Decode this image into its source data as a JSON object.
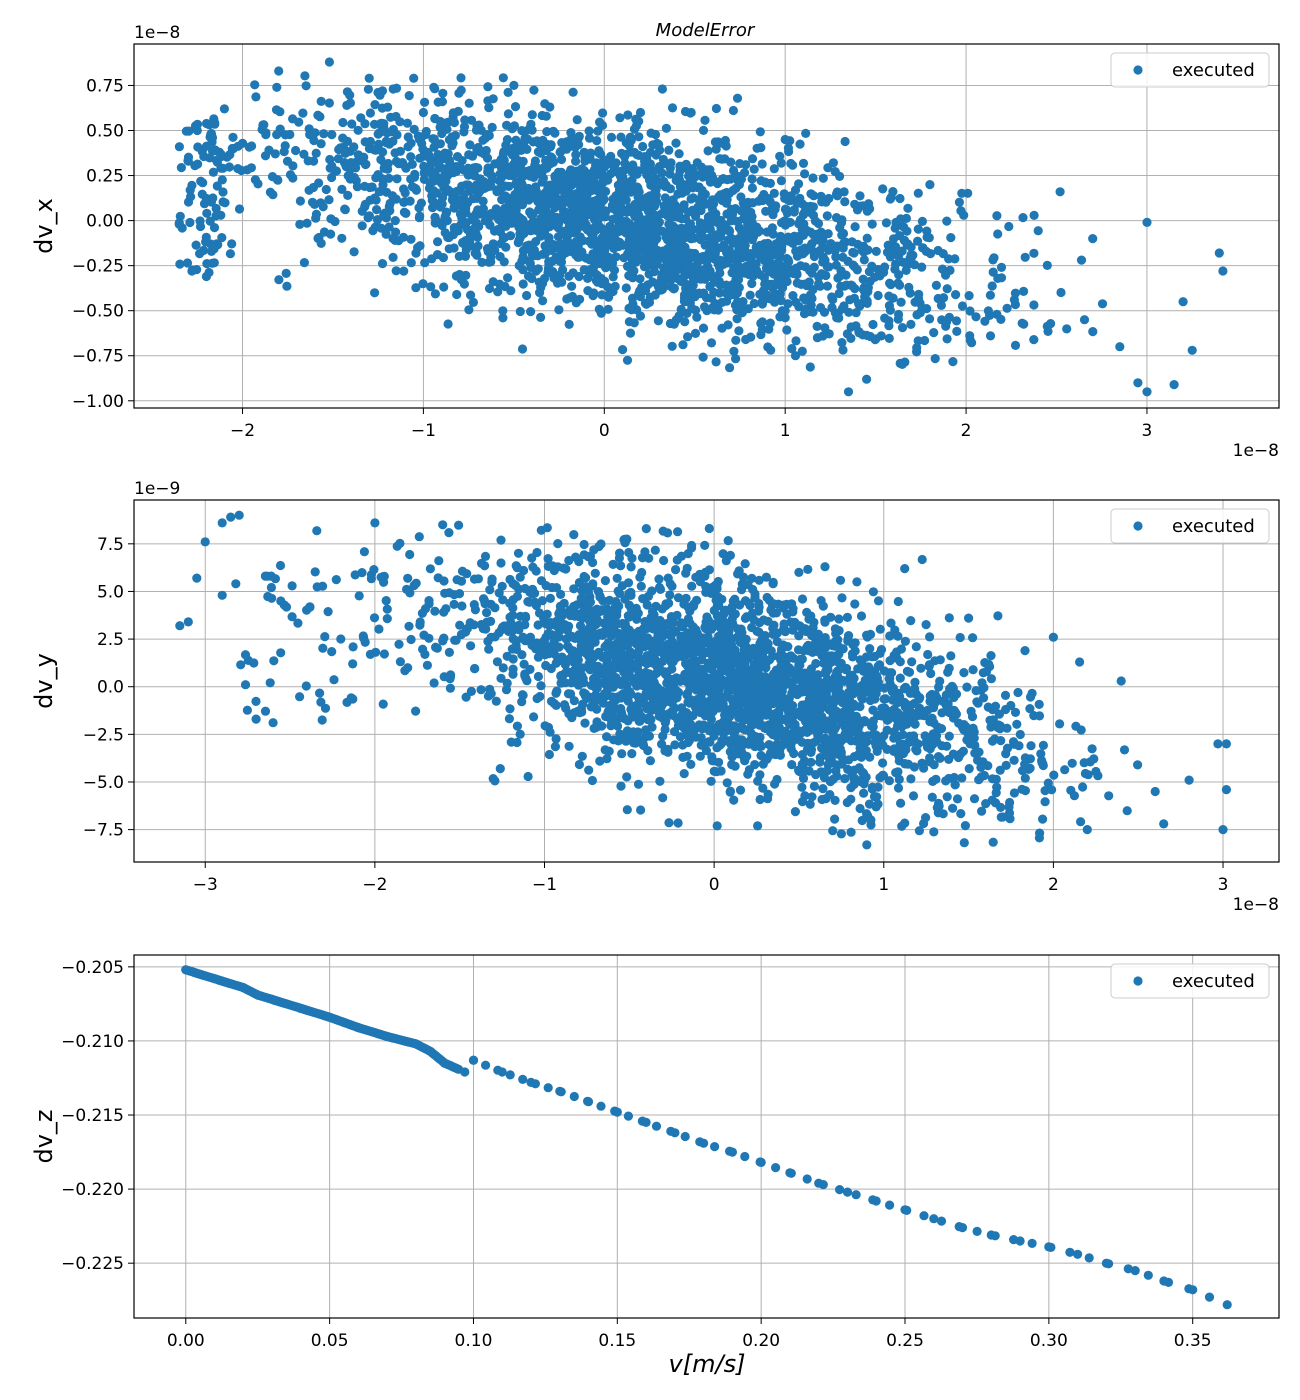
{
  "figure_title": "ModelError",
  "xlabel": "v[m/s]",
  "colors": {
    "marker": "#1f77b4",
    "grid": "#b0b0b0",
    "axes": "#000000",
    "legend_border": "#cccccc"
  },
  "chart_data": [
    {
      "type": "scatter",
      "ylabel": "dv_x",
      "legend": {
        "entries": [
          "executed"
        ],
        "placement": "top-right"
      },
      "grid": true,
      "xlim": [
        -2.6,
        3.73
      ],
      "ylim": [
        -1.04,
        0.98
      ],
      "x_offset_label": "1e−8",
      "y_offset_label": "1e−8",
      "xticks": [
        -2,
        -1,
        0,
        1,
        2,
        3
      ],
      "xtick_labels": [
        "−2",
        "−1",
        "0",
        "1",
        "2",
        "3"
      ],
      "yticks": [
        -1.0,
        -0.75,
        -0.5,
        -0.25,
        0.0,
        0.25,
        0.5,
        0.75
      ],
      "ytick_labels": [
        "−1.00",
        "−0.75",
        "−0.50",
        "−0.25",
        "0.00",
        "0.25",
        "0.50",
        "0.75"
      ],
      "series": [
        {
          "name": "executed",
          "description": "approx. 3000 points forming a negatively sloped cloud (slope about -0.2); values in units of 1e-8",
          "x_range": [
            -2.35,
            3.42
          ],
          "y_range": [
            -0.95,
            0.88
          ],
          "sample_points": [
            [
              -2.35,
              -0.02
            ],
            [
              -2.3,
              0.33
            ],
            [
              -2.28,
              -0.28
            ],
            [
              -2.25,
              0.5
            ],
            [
              -2.2,
              -0.31
            ],
            [
              -2.1,
              0.62
            ],
            [
              -1.8,
              0.83
            ],
            [
              -1.52,
              0.88
            ],
            [
              -1.3,
              0.79
            ],
            [
              -1.0,
              0.6
            ],
            [
              -0.5,
              0.75
            ],
            [
              0.2,
              0.6
            ],
            [
              1.0,
              0.45
            ],
            [
              1.0,
              -0.5
            ],
            [
              1.35,
              -0.95
            ],
            [
              1.45,
              -0.88
            ],
            [
              1.8,
              0.2
            ],
            [
              2.52,
              0.16
            ],
            [
              2.7,
              -0.1
            ],
            [
              2.85,
              -0.7
            ],
            [
              2.95,
              -0.9
            ],
            [
              3.0,
              -0.01
            ],
            [
              3.0,
              -0.95
            ],
            [
              3.15,
              -0.91
            ],
            [
              3.2,
              -0.45
            ],
            [
              3.25,
              -0.72
            ],
            [
              3.4,
              -0.18
            ],
            [
              3.42,
              -0.28
            ]
          ]
        }
      ]
    },
    {
      "type": "scatter",
      "ylabel": "dv_y",
      "legend": {
        "entries": [
          "executed"
        ],
        "placement": "top-right"
      },
      "grid": true,
      "xlim": [
        -3.42,
        3.33
      ],
      "ylim": [
        -9.2,
        9.8
      ],
      "x_offset_label": "1e−8",
      "y_offset_label": "1e−9",
      "xticks": [
        -3,
        -2,
        -1,
        0,
        1,
        2,
        3
      ],
      "xtick_labels": [
        "−3",
        "−2",
        "−1",
        "0",
        "1",
        "2",
        "3"
      ],
      "yticks": [
        -7.5,
        -5.0,
        -2.5,
        0.0,
        2.5,
        5.0,
        7.5
      ],
      "ytick_labels": [
        "−7.5",
        "−5.0",
        "−2.5",
        "0.0",
        "2.5",
        "5.0",
        "7.5"
      ],
      "series": [
        {
          "name": "executed",
          "description": "approx. 3000 points forming a negatively sloped cloud; x in units of 1e-8, y in units of 1e-9",
          "x_range": [
            -3.15,
            3.02
          ],
          "y_range": [
            -8.3,
            9.0
          ],
          "sample_points": [
            [
              -3.15,
              3.2
            ],
            [
              -3.1,
              3.4
            ],
            [
              -3.05,
              5.7
            ],
            [
              -3.0,
              7.6
            ],
            [
              -2.9,
              8.6
            ],
            [
              -2.85,
              8.9
            ],
            [
              -2.8,
              9.0
            ],
            [
              -2.82,
              5.4
            ],
            [
              -2.9,
              4.8
            ],
            [
              -2.7,
              -1.7
            ],
            [
              -2.0,
              8.6
            ],
            [
              -1.6,
              8.5
            ],
            [
              -0.4,
              8.3
            ],
            [
              0.5,
              6.0
            ],
            [
              0.9,
              -8.3
            ],
            [
              1.5,
              3.6
            ],
            [
              2.0,
              2.6
            ],
            [
              2.2,
              -7.5
            ],
            [
              2.4,
              0.3
            ],
            [
              2.6,
              -5.5
            ],
            [
              2.65,
              -7.2
            ],
            [
              2.8,
              -4.9
            ],
            [
              2.97,
              -3.0
            ],
            [
              3.0,
              -7.5
            ],
            [
              3.02,
              -5.4
            ],
            [
              3.02,
              -3.0
            ]
          ]
        }
      ]
    },
    {
      "type": "scatter",
      "ylabel": "dv_z",
      "xlabel": "v[m/s]",
      "legend": {
        "entries": [
          "executed"
        ],
        "placement": "top-right"
      },
      "grid": true,
      "xlim": [
        -0.018,
        0.38
      ],
      "ylim": [
        -0.2287,
        -0.2042
      ],
      "xticks": [
        0.0,
        0.05,
        0.1,
        0.15,
        0.2,
        0.25,
        0.3,
        0.35
      ],
      "xtick_labels": [
        "0.00",
        "0.05",
        "0.10",
        "0.15",
        "0.20",
        "0.25",
        "0.30",
        "0.35"
      ],
      "yticks": [
        -0.205,
        -0.21,
        -0.215,
        -0.22,
        -0.225
      ],
      "ytick_labels": [
        "−0.205",
        "−0.210",
        "−0.215",
        "−0.220",
        "−0.225"
      ],
      "series": [
        {
          "name": "executed",
          "description": "nearly linear decreasing relation; dense near v=0, sparser at larger v",
          "points": [
            [
              0.0,
              -0.2052
            ],
            [
              0.01,
              -0.2058
            ],
            [
              0.02,
              -0.2064
            ],
            [
              0.025,
              -0.2069
            ],
            [
              0.03,
              -0.2072
            ],
            [
              0.04,
              -0.2078
            ],
            [
              0.05,
              -0.2084
            ],
            [
              0.06,
              -0.2091
            ],
            [
              0.07,
              -0.2097
            ],
            [
              0.08,
              -0.2102
            ],
            [
              0.085,
              -0.2107
            ],
            [
              0.09,
              -0.2115
            ],
            [
              0.097,
              -0.2121
            ],
            [
              0.1,
              -0.2113
            ],
            [
              0.11,
              -0.2121
            ],
            [
              0.12,
              -0.2128
            ],
            [
              0.13,
              -0.2134
            ],
            [
              0.14,
              -0.2141
            ],
            [
              0.15,
              -0.2148
            ],
            [
              0.16,
              -0.2155
            ],
            [
              0.17,
              -0.2162
            ],
            [
              0.18,
              -0.2169
            ],
            [
              0.19,
              -0.2175
            ],
            [
              0.2,
              -0.2182
            ],
            [
              0.21,
              -0.2189
            ],
            [
              0.22,
              -0.2196
            ],
            [
              0.23,
              -0.2202
            ],
            [
              0.24,
              -0.2208
            ],
            [
              0.25,
              -0.2214
            ],
            [
              0.26,
              -0.222
            ],
            [
              0.27,
              -0.2226
            ],
            [
              0.28,
              -0.2231
            ],
            [
              0.29,
              -0.2235
            ],
            [
              0.3,
              -0.2239
            ],
            [
              0.31,
              -0.2244
            ],
            [
              0.32,
              -0.225
            ],
            [
              0.33,
              -0.2255
            ],
            [
              0.34,
              -0.2262
            ],
            [
              0.35,
              -0.2268
            ],
            [
              0.362,
              -0.2278
            ]
          ]
        }
      ]
    }
  ]
}
